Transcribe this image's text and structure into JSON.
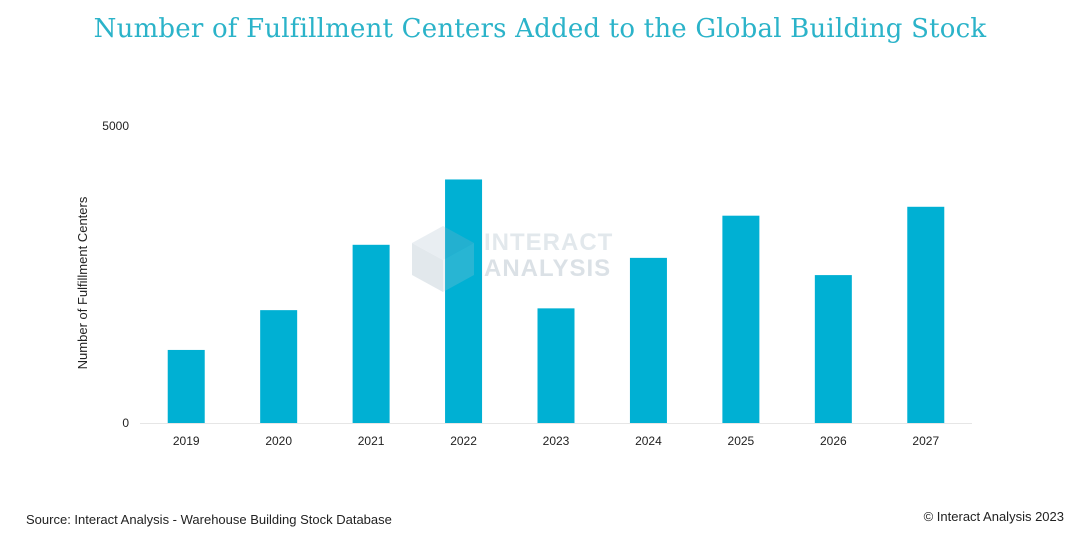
{
  "title": "Number of Fulfillment Centers Added to the Global Building Stock",
  "watermark": {
    "line1": "INTERACT",
    "line2": "ANALYSIS"
  },
  "footer": {
    "source": "Source: Interact Analysis - Warehouse Building Stock Database",
    "copyright": "© Interact Analysis 2023"
  },
  "colors": {
    "bar": "#00b0d3",
    "title": "#2bb3c9",
    "axis_text": "#222222"
  },
  "chart_data": {
    "type": "bar",
    "categories": [
      "2019",
      "2020",
      "2021",
      "2022",
      "2023",
      "2024",
      "2025",
      "2026",
      "2027"
    ],
    "values": [
      1230,
      1900,
      3000,
      4100,
      1930,
      2780,
      3490,
      2490,
      3640
    ],
    "ylabel": "Number of Fulfillment Centers",
    "xlabel": "",
    "ylim": [
      0,
      5000
    ],
    "yticks": [
      "0",
      "5000"
    ],
    "grid": false,
    "legend": "none"
  }
}
